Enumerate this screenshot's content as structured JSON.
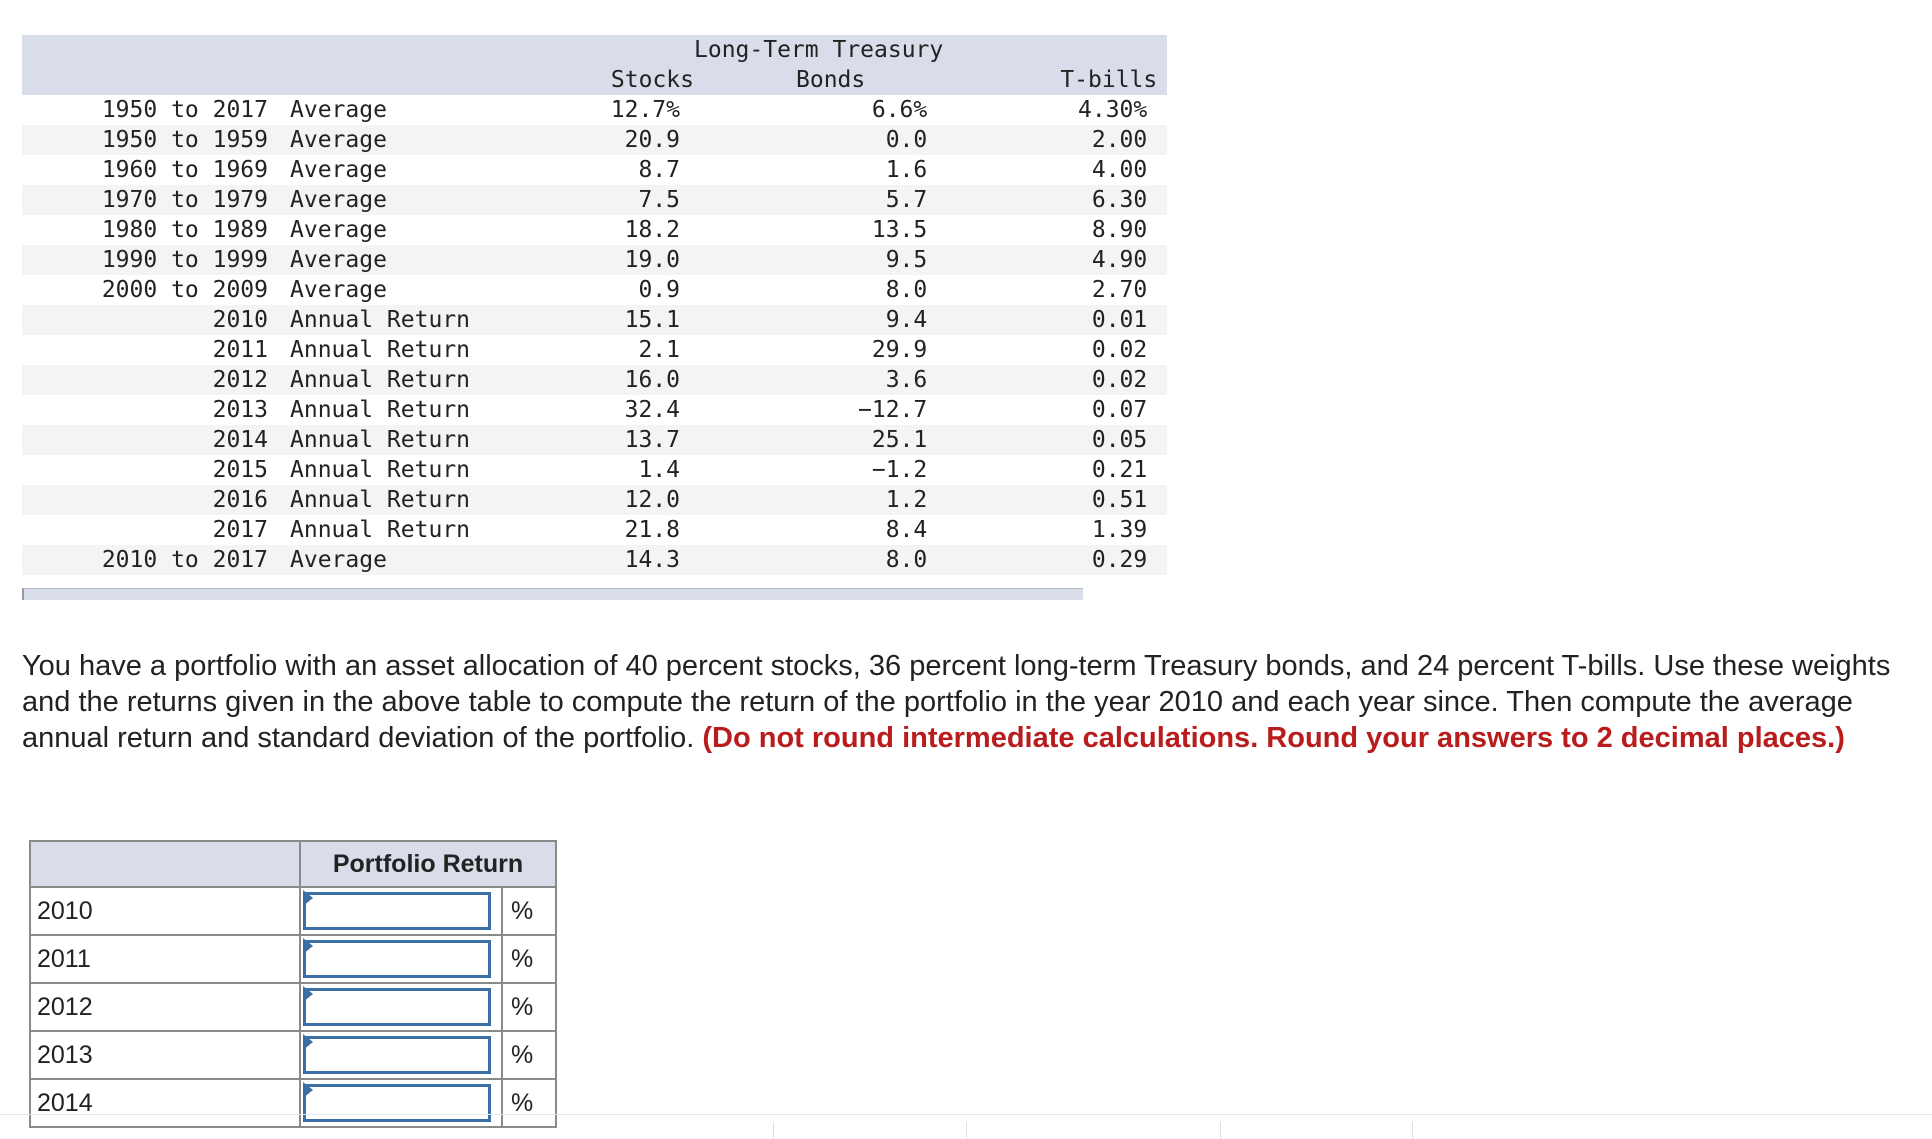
{
  "returns_table": {
    "header": {
      "group_label": "Long-Term Treasury",
      "col_stocks": "Stocks",
      "col_bonds": "Bonds",
      "col_tbills": "T-bills"
    },
    "rows": [
      {
        "period": "1950 to 2017",
        "desc": "Average",
        "stocks": "12.7%",
        "bonds": "6.6%",
        "tbills": "4.30%"
      },
      {
        "period": "1950 to 1959",
        "desc": "Average",
        "stocks": "20.9",
        "bonds": "0.0",
        "tbills": "2.00"
      },
      {
        "period": "1960 to 1969",
        "desc": "Average",
        "stocks": "8.7",
        "bonds": "1.6",
        "tbills": "4.00"
      },
      {
        "period": "1970 to 1979",
        "desc": "Average",
        "stocks": "7.5",
        "bonds": "5.7",
        "tbills": "6.30"
      },
      {
        "period": "1980 to 1989",
        "desc": "Average",
        "stocks": "18.2",
        "bonds": "13.5",
        "tbills": "8.90"
      },
      {
        "period": "1990 to 1999",
        "desc": "Average",
        "stocks": "19.0",
        "bonds": "9.5",
        "tbills": "4.90"
      },
      {
        "period": "2000 to 2009",
        "desc": "Average",
        "stocks": "0.9",
        "bonds": "8.0",
        "tbills": "2.70"
      },
      {
        "period": "2010",
        "desc": "Annual Return",
        "stocks": "15.1",
        "bonds": "9.4",
        "tbills": "0.01"
      },
      {
        "period": "2011",
        "desc": "Annual Return",
        "stocks": "2.1",
        "bonds": "29.9",
        "tbills": "0.02"
      },
      {
        "period": "2012",
        "desc": "Annual Return",
        "stocks": "16.0",
        "bonds": "3.6",
        "tbills": "0.02"
      },
      {
        "period": "2013",
        "desc": "Annual Return",
        "stocks": "32.4",
        "bonds": "−12.7",
        "tbills": "0.07"
      },
      {
        "period": "2014",
        "desc": "Annual Return",
        "stocks": "13.7",
        "bonds": "25.1",
        "tbills": "0.05"
      },
      {
        "period": "2015",
        "desc": "Annual Return",
        "stocks": "1.4",
        "bonds": "−1.2",
        "tbills": "0.21"
      },
      {
        "period": "2016",
        "desc": "Annual Return",
        "stocks": "12.0",
        "bonds": "1.2",
        "tbills": "0.51"
      },
      {
        "period": "2017",
        "desc": "Annual Return",
        "stocks": "21.8",
        "bonds": "8.4",
        "tbills": "1.39"
      },
      {
        "period": "2010 to 2017",
        "desc": "Average",
        "stocks": "14.3",
        "bonds": "8.0",
        "tbills": "0.29"
      }
    ]
  },
  "question": {
    "text": "You have a portfolio with an asset allocation of 40 percent stocks, 36 percent long-term Treasury bonds, and 24 percent T-bills. Use these weights and the returns given in the above table to compute the return of the portfolio in the year 2010 and each year since. Then compute the average annual return and standard deviation of the portfolio. ",
    "instruction": "(Do not round intermediate calculations. Round your answers to 2 decimal places.)"
  },
  "answer_table": {
    "header": "Portfolio Return",
    "unit": "%",
    "rows": [
      {
        "year": "2010",
        "value": ""
      },
      {
        "year": "2011",
        "value": ""
      },
      {
        "year": "2012",
        "value": ""
      },
      {
        "year": "2013",
        "value": ""
      },
      {
        "year": "2014",
        "value": ""
      }
    ]
  },
  "colors": {
    "header_bg": "#d9dde9",
    "instruction_red": "#b81c1c",
    "input_border": "#3a6ea5"
  }
}
